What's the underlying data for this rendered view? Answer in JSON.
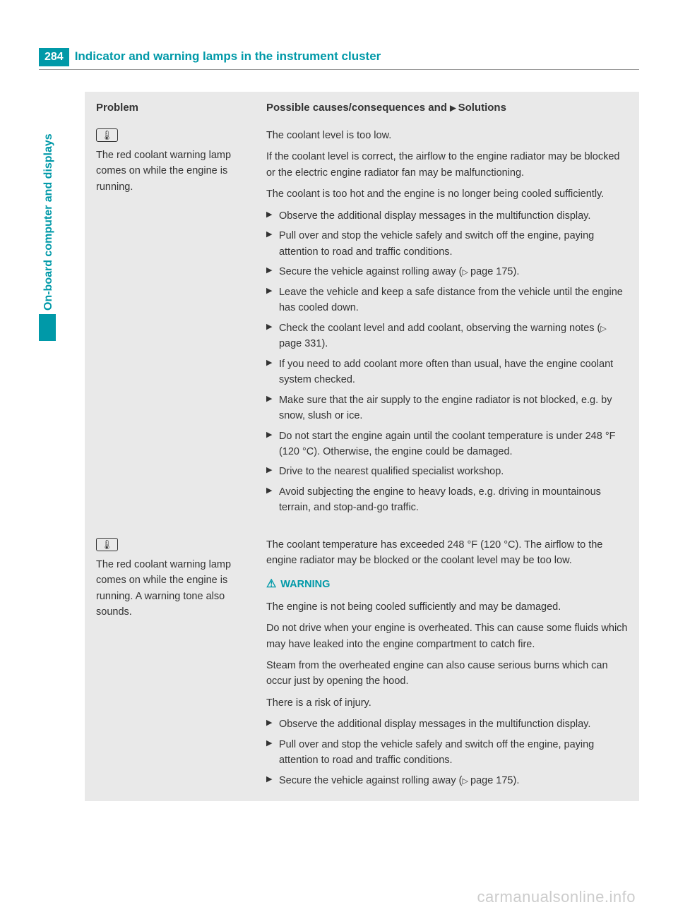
{
  "page": {
    "number": "284",
    "title": "Indicator and warning lamps in the instrument cluster",
    "sidebar_label": "On-board computer and displays"
  },
  "colors": {
    "brand": "#0099a8",
    "body_text": "#333333",
    "content_bg": "#e9e9e9",
    "watermark": "#cccccc"
  },
  "table": {
    "headers": {
      "problem": "Problem",
      "solution_prefix": "Possible causes/consequences and",
      "solution_suffix": "Solutions"
    },
    "rows": [
      {
        "icon_glyph": "🌡",
        "problem": "The red coolant warning lamp comes on while the engine is running.",
        "solution_paras": [
          "The coolant level is too low.",
          "If the coolant level is correct, the airflow to the engine radiator may be blocked or the electric engine radiator fan may be malfunctioning.",
          "The coolant is too hot and the engine is no longer being cooled sufficiently."
        ],
        "steps": [
          {
            "text": "Observe the additional display messages in the multifunction display."
          },
          {
            "text": "Pull over and stop the vehicle safely and switch off the engine, paying attention to road and traffic conditions."
          },
          {
            "text": "Secure the vehicle against rolling away (",
            "page_ref": "page 175",
            "suffix": ")."
          },
          {
            "text": "Leave the vehicle and keep a safe distance from the vehicle until the engine has cooled down."
          },
          {
            "text": "Check the coolant level and add coolant, observing the warning notes (",
            "page_ref": "page 331",
            "suffix": ")."
          },
          {
            "text": "If you need to add coolant more often than usual, have the engine coolant system checked."
          },
          {
            "text": "Make sure that the air supply to the engine radiator is not blocked, e.g. by snow, slush or ice."
          },
          {
            "text": "Do not start the engine again until the coolant temperature is under 248 °F (120 °C). Otherwise, the engine could be damaged."
          },
          {
            "text": "Drive to the nearest qualified specialist workshop."
          },
          {
            "text": "Avoid subjecting the engine to heavy loads, e.g. driving in mountainous terrain, and stop-and-go traffic."
          }
        ]
      },
      {
        "icon_glyph": "🌡",
        "problem": "The red coolant warning lamp comes on while the engine is running. A warning tone also sounds.",
        "solution_paras": [
          "The coolant temperature has exceeded 248 °F (120 °C). The airflow to the engine radiator may be blocked or the coolant level may be too low."
        ],
        "warning": {
          "label": "WARNING",
          "paras": [
            "The engine is not being cooled sufficiently and may be damaged.",
            "Do not drive when your engine is overheated. This can cause some fluids which may have leaked into the engine compartment to catch fire.",
            "Steam from the overheated engine can also cause serious burns which can occur just by opening the hood.",
            "There is a risk of injury."
          ]
        },
        "steps": [
          {
            "text": "Observe the additional display messages in the multifunction display."
          },
          {
            "text": "Pull over and stop the vehicle safely and switch off the engine, paying attention to road and traffic conditions."
          },
          {
            "text": "Secure the vehicle against rolling away (",
            "page_ref": "page 175",
            "suffix": ")."
          }
        ]
      }
    ]
  },
  "watermark": "carmanualsonline.info"
}
